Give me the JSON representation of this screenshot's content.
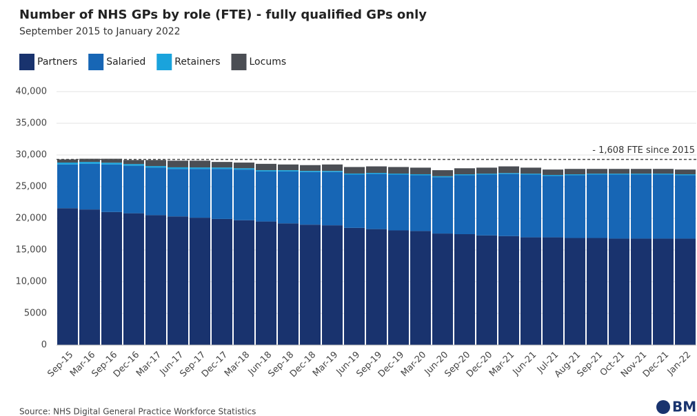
{
  "chart_data": {
    "type": "stacked_bar",
    "title": "Number of NHS GPs by role (FTE) - fully qualified GPs only",
    "subtitle": "September 2015 to January 2022",
    "source": "Source: NHS Digital General Practice Workforce Statistics",
    "logo": "BM",
    "annotation": "- 1,608 FTE since 2015",
    "reference_line": 29300,
    "categories": [
      "Sep-15",
      "Mar-16",
      "Sep-16",
      "Dec-16",
      "Mar-17",
      "Jun-17",
      "Sep-17",
      "Dec-17",
      "Mar-18",
      "Jun-18",
      "Sep-18",
      "Dec-18",
      "Mar-19",
      "Jun-19",
      "Sep-19",
      "Dec-19",
      "Mar-20",
      "Jun-20",
      "Sep-20",
      "Dec-20",
      "Mar-21",
      "Jun-21",
      "Jul-21",
      "Aug-21",
      "Sep-21",
      "Oct-21",
      "Nov-21",
      "Dec-21",
      "Jan-22"
    ],
    "series": [
      {
        "name": "Partners",
        "color": "#19336e",
        "values": [
          21600,
          21400,
          21000,
          20800,
          20500,
          20300,
          20100,
          19900,
          19700,
          19500,
          19200,
          19000,
          18900,
          18500,
          18300,
          18100,
          18000,
          17600,
          17500,
          17300,
          17200,
          17000,
          17000,
          16900,
          16900,
          16800,
          16800,
          16800,
          16800
        ]
      },
      {
        "name": "Salaried",
        "color": "#1766b5",
        "values": [
          6900,
          7200,
          7500,
          7500,
          7500,
          7500,
          7700,
          7900,
          8000,
          7900,
          8200,
          8300,
          8400,
          8400,
          8700,
          8800,
          8800,
          8900,
          9300,
          9600,
          9800,
          9900,
          9700,
          9900,
          10000,
          10100,
          10100,
          10100,
          10000
        ]
      },
      {
        "name": "Retainers",
        "color": "#1aa3dc",
        "values": [
          300,
          300,
          280,
          270,
          250,
          250,
          230,
          220,
          210,
          200,
          200,
          190,
          180,
          170,
          170,
          160,
          160,
          150,
          150,
          150,
          150,
          150,
          150,
          150,
          150,
          150,
          150,
          150,
          150
        ]
      },
      {
        "name": "Locums",
        "color": "#4b4e54",
        "values": [
          500,
          500,
          620,
          630,
          950,
          1050,
          1070,
          880,
          890,
          1000,
          900,
          910,
          1020,
          1030,
          1030,
          1040,
          1040,
          950,
          950,
          950,
          1050,
          950,
          850,
          850,
          750,
          750,
          750,
          750,
          750
        ]
      }
    ],
    "ylim": [
      0,
      40000
    ],
    "yticks": [
      0,
      {
        "value": 5000,
        "label": "5000"
      },
      {
        "value": 10000,
        "label": "10,000"
      },
      {
        "value": 15000,
        "label": "15,000"
      },
      {
        "value": 20000,
        "label": "20,000"
      },
      {
        "value": 25000,
        "label": "25,000"
      },
      {
        "value": 30000,
        "label": "30,000"
      },
      {
        "value": 35000,
        "label": "35,000"
      },
      {
        "value": 40000,
        "label": "40,000"
      }
    ],
    "grid": true
  }
}
